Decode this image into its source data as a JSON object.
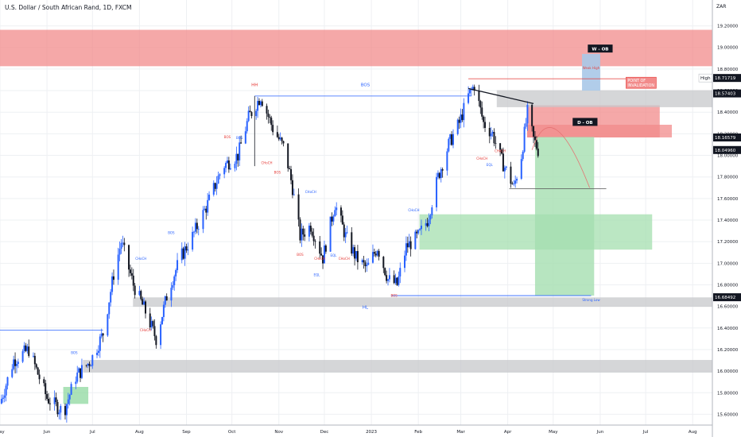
{
  "header": {
    "title": "U.S. Dollar / South African Rand, 1D, FXCM",
    "currency": "ZAR"
  },
  "colors": {
    "up": "#2962ff",
    "down": "#131722",
    "supply": "#f28b8b",
    "demand": "#8fd9a0",
    "neutral": "#c8c9cc",
    "accent_red": "#e53935"
  },
  "chart_data": {
    "type": "candlestick",
    "symbol": "USDZAR",
    "timeframe": "1D",
    "ylim": [
      15.5,
      19.44
    ],
    "xlim": [
      "2022-05-01",
      "2023-08-14"
    ],
    "grid": true,
    "y_ticks": [
      "19.20000",
      "19.00000",
      "18.80000",
      "18.60000",
      "18.40000",
      "18.20000",
      "18.00000",
      "17.80000",
      "17.60000",
      "17.40000",
      "17.20000",
      "17.00000",
      "16.80000",
      "16.60000",
      "16.40000",
      "16.20000",
      "16.00000",
      "15.80000",
      "15.60000"
    ],
    "x_ticks": [
      {
        "label": "May",
        "date": "2022-05-01"
      },
      {
        "label": "Jun",
        "date": "2022-06-01"
      },
      {
        "label": "Jul",
        "date": "2022-07-01"
      },
      {
        "label": "Aug",
        "date": "2022-08-01"
      },
      {
        "label": "Sep",
        "date": "2022-09-01"
      },
      {
        "label": "Oct",
        "date": "2022-10-01"
      },
      {
        "label": "Nov",
        "date": "2022-11-01"
      },
      {
        "label": "Dec",
        "date": "2022-12-01"
      },
      {
        "label": "2023",
        "date": "2023-01-01"
      },
      {
        "label": "Feb",
        "date": "2023-02-01"
      },
      {
        "label": "Mar",
        "date": "2023-03-01"
      },
      {
        "label": "Apr",
        "date": "2023-04-01"
      },
      {
        "label": "May",
        "date": "2023-05-01"
      },
      {
        "label": "Jun",
        "date": "2023-06-01"
      },
      {
        "label": "Jul",
        "date": "2023-07-01"
      },
      {
        "label": "Aug",
        "date": "2023-08-01"
      }
    ],
    "price_path": [
      [
        "2022-05-01",
        15.7
      ],
      [
        "2022-05-10",
        16.1
      ],
      [
        "2022-05-20",
        16.2
      ],
      [
        "2022-06-01",
        15.75
      ],
      [
        "2022-06-12",
        15.62
      ],
      [
        "2022-06-20",
        15.95
      ],
      [
        "2022-06-30",
        16.1
      ],
      [
        "2022-07-08",
        16.35
      ],
      [
        "2022-07-15",
        16.9
      ],
      [
        "2022-07-20",
        17.2
      ],
      [
        "2022-07-28",
        16.8
      ],
      [
        "2022-08-05",
        16.55
      ],
      [
        "2022-08-12",
        16.3
      ],
      [
        "2022-08-20",
        16.75
      ],
      [
        "2022-08-28",
        17.05
      ],
      [
        "2022-09-05",
        17.25
      ],
      [
        "2022-09-15",
        17.55
      ],
      [
        "2022-09-25",
        17.9
      ],
      [
        "2022-10-05",
        18.0
      ],
      [
        "2022-10-12",
        18.35
      ],
      [
        "2022-10-20",
        18.55
      ],
      [
        "2022-10-28",
        18.25
      ],
      [
        "2022-11-05",
        18.05
      ],
      [
        "2022-11-10",
        17.7
      ],
      [
        "2022-11-15",
        17.25
      ],
      [
        "2022-11-22",
        17.35
      ],
      [
        "2022-11-30",
        17.05
      ],
      [
        "2022-12-08",
        17.55
      ],
      [
        "2022-12-15",
        17.25
      ],
      [
        "2022-12-22",
        17.05
      ],
      [
        "2022-12-29",
        16.95
      ],
      [
        "2023-01-05",
        17.15
      ],
      [
        "2023-01-12",
        16.85
      ],
      [
        "2023-01-18",
        16.8
      ],
      [
        "2023-01-24",
        17.15
      ],
      [
        "2023-02-01",
        17.25
      ],
      [
        "2023-02-07",
        17.4
      ],
      [
        "2023-02-14",
        17.8
      ],
      [
        "2023-02-21",
        18.1
      ],
      [
        "2023-02-28",
        18.3
      ],
      [
        "2023-03-06",
        18.55
      ],
      [
        "2023-03-10",
        18.65
      ],
      [
        "2023-03-16",
        18.3
      ],
      [
        "2023-03-22",
        18.2
      ],
      [
        "2023-03-28",
        17.95
      ],
      [
        "2023-04-02",
        17.8
      ],
      [
        "2023-04-05",
        17.7
      ],
      [
        "2023-04-10",
        18.0
      ],
      [
        "2023-04-14",
        18.4
      ],
      [
        "2023-04-18",
        18.15
      ],
      [
        "2023-04-21",
        18.05
      ]
    ],
    "price_tags": [
      {
        "label": "18.71719",
        "value": 18.71719
      },
      {
        "label": "18.57403",
        "value": 18.57403
      },
      {
        "label": "18.16579",
        "value": 18.16579
      },
      {
        "label": "18.04960",
        "value": 18.0496
      },
      {
        "label": "16.68492",
        "value": 16.68492
      }
    ],
    "high_tag": "High",
    "zones": [
      {
        "name": "weekly-ob",
        "y1": 18.83,
        "y2": 19.16,
        "x1": "2022-04-25",
        "x2": "2023-08-14",
        "color": "#f28b8b"
      },
      {
        "name": "daily-ob",
        "y1": 18.17,
        "y2": 18.46,
        "x1": "2023-04-14",
        "x2": "2023-07-10",
        "color": "#f28b8b"
      },
      {
        "name": "daily-ob-ext",
        "y1": 18.17,
        "y2": 18.28,
        "x1": "2023-04-14",
        "x2": "2023-07-18",
        "color": "#f28b8b"
      },
      {
        "name": "top-grey",
        "y1": 18.45,
        "y2": 18.6,
        "x1": "2023-03-25",
        "x2": "2023-08-14",
        "color": "#c8c9cc"
      },
      {
        "name": "demand-zone",
        "y1": 17.13,
        "y2": 17.45,
        "x1": "2023-02-02",
        "x2": "2023-07-05",
        "color": "#a5dfb0"
      },
      {
        "name": "hl-grey",
        "y1": 16.6,
        "y2": 16.68,
        "x1": "2022-07-28",
        "x2": "2023-08-14",
        "color": "#c8c9cc"
      },
      {
        "name": "lower-grey",
        "y1": 15.99,
        "y2": 16.1,
        "x1": "2022-06-25",
        "x2": "2023-08-14",
        "color": "#c8c9cc"
      },
      {
        "name": "green-june",
        "y1": 15.7,
        "y2": 15.85,
        "x1": "2022-06-12",
        "x2": "2022-06-28",
        "color": "#8fd9a0"
      }
    ],
    "annotations": [
      {
        "text": "W - OB",
        "date": "2023-06-01",
        "y": 18.99,
        "style": "dark"
      },
      {
        "text": "D - OB",
        "date": "2023-05-22",
        "y": 18.31,
        "style": "dark"
      },
      {
        "text": "POINT OF INVALIDATION",
        "date": "2023-06-28",
        "y": 18.68,
        "style": "redbox"
      },
      {
        "text": "HH",
        "date": "2022-10-16",
        "y": 18.64,
        "style": "red"
      },
      {
        "text": "BOS",
        "date": "2022-12-28",
        "y": 18.64,
        "style": "blue"
      },
      {
        "text": "HL",
        "date": "2022-12-28",
        "y": 16.58,
        "style": "blue"
      },
      {
        "text": "Weak High",
        "date": "2023-05-26",
        "y": 18.8,
        "style": "redsmall"
      },
      {
        "text": "Strong Low",
        "date": "2023-05-26",
        "y": 16.65,
        "style": "bluesmall"
      },
      {
        "text": "BOS",
        "date": "2022-10-06",
        "y": 18.15,
        "style": "bluesmall"
      },
      {
        "text": "CHoCH",
        "date": "2022-10-24",
        "y": 17.92,
        "style": "redsmall"
      },
      {
        "text": "BOS",
        "date": "2022-10-31",
        "y": 17.83,
        "style": "redsmall"
      },
      {
        "text": "CHoCH",
        "date": "2022-11-22",
        "y": 17.65,
        "style": "bluesmall"
      },
      {
        "text": "BOS",
        "date": "2022-11-15",
        "y": 17.07,
        "style": "redsmall"
      },
      {
        "text": "CHoCH",
        "date": "2022-11-28",
        "y": 17.03,
        "style": "redsmall"
      },
      {
        "text": "EQL",
        "date": "2022-11-26",
        "y": 16.88,
        "style": "bluesmall"
      },
      {
        "text": "EQL",
        "date": "2022-12-07",
        "y": 17.06,
        "style": "bluesmall"
      },
      {
        "text": "CHoCH",
        "date": "2022-12-14",
        "y": 17.03,
        "style": "redsmall"
      },
      {
        "text": "BOS",
        "date": "2023-01-16",
        "y": 16.69,
        "style": "redsmall"
      },
      {
        "text": "CHoCH",
        "date": "2023-01-29",
        "y": 17.48,
        "style": "bluesmall"
      },
      {
        "text": "BOS",
        "date": "2022-06-19",
        "y": 16.16,
        "style": "bluesmall"
      },
      {
        "text": "BOS",
        "date": "2022-08-22",
        "y": 17.27,
        "style": "bluesmall"
      },
      {
        "text": "CHoCH",
        "date": "2022-08-02",
        "y": 17.03,
        "style": "bluesmall"
      },
      {
        "text": "CHoCH",
        "date": "2022-08-05",
        "y": 16.37,
        "style": "redsmall"
      },
      {
        "text": "BOS",
        "date": "2022-09-28",
        "y": 18.16,
        "style": "redsmall"
      },
      {
        "text": "CHoCH",
        "date": "2023-03-15",
        "y": 17.96,
        "style": "redsmall"
      },
      {
        "text": "EQL",
        "date": "2023-03-20",
        "y": 17.9,
        "style": "bluesmall"
      },
      {
        "text": "CHoCH",
        "date": "2023-03-27",
        "y": 18.03,
        "style": "redsmall"
      }
    ]
  }
}
